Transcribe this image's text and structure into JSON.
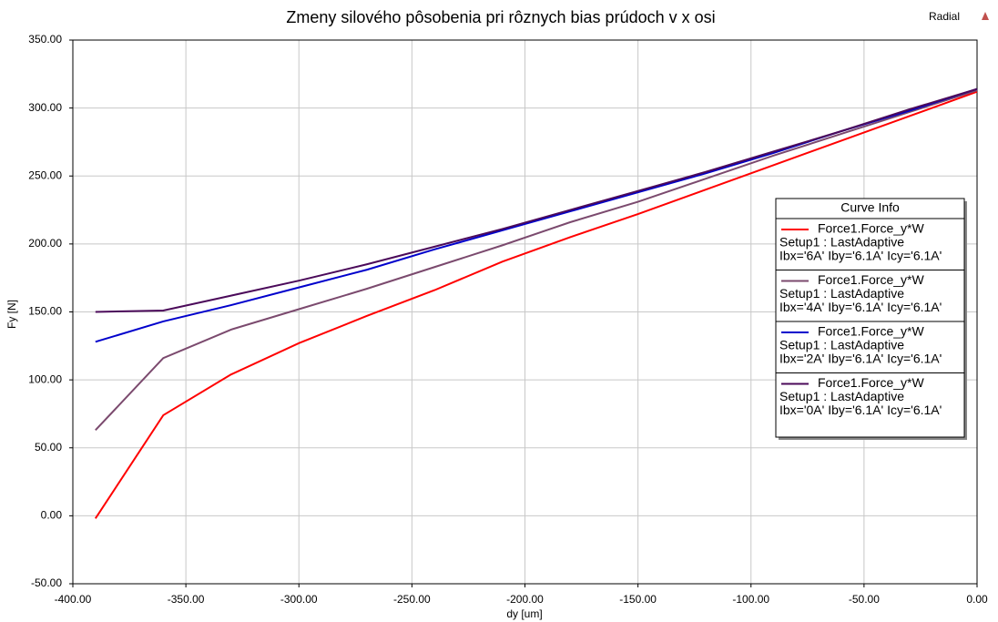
{
  "chart_data": {
    "type": "line",
    "title": "Zmeny silového pôsobenia pri rôznych bias prúdoch v x osi",
    "corner_label": "Radial",
    "x_label": "dy [um]",
    "y_label": "Fy [N]",
    "legend_title": "Curve Info",
    "legend_position": "right",
    "grid": true,
    "x": [
      -390,
      -360,
      -330,
      -300,
      -270,
      -240,
      -210,
      -180,
      -150,
      -120,
      -90,
      -60,
      -30,
      0
    ],
    "series": [
      {
        "name": "Force1.Force_y*W",
        "setup": "Setup1 : LastAdaptive",
        "params": "Ibx='6A' Iby='6.1A' Icy='6.1A'",
        "color": "#ff0000",
        "values": [
          -2,
          74,
          104,
          127,
          147,
          166,
          187,
          205,
          222,
          240,
          258,
          276,
          294,
          312
        ]
      },
      {
        "name": "Force1.Force_y*W",
        "setup": "Setup1 : LastAdaptive",
        "params": "Ibx='4A' Iby='6.1A' Icy='6.1A'",
        "color": "#7b4a6e",
        "values": [
          63,
          116,
          137,
          152,
          167,
          183,
          199,
          216,
          231,
          248,
          265,
          281,
          297,
          313
        ]
      },
      {
        "name": "Force1.Force_y*W",
        "setup": "Setup1 : LastAdaptive",
        "params": "Ibx='2A' Iby='6.1A' Icy='6.1A'",
        "color": "#0000cc",
        "values": [
          128,
          143,
          155,
          168,
          181,
          196,
          210,
          224,
          238,
          252,
          267,
          283,
          298,
          314
        ]
      },
      {
        "name": "Force1.Force_y*W",
        "setup": "Setup1 : LastAdaptive",
        "params": "Ibx='0A' Iby='6.1A' Icy='6.1A'",
        "color": "#4b0a5a",
        "values": [
          150,
          151,
          162,
          173,
          185,
          198,
          211,
          225,
          239,
          253,
          268,
          283,
          299,
          314
        ]
      }
    ],
    "xlim": [
      -400,
      0
    ],
    "xticks": [
      {
        "value": -400,
        "label": "-400.00"
      },
      {
        "value": -350,
        "label": "-350.00"
      },
      {
        "value": -300,
        "label": "-300.00"
      },
      {
        "value": -250,
        "label": "-250.00"
      },
      {
        "value": -200,
        "label": "-200.00"
      },
      {
        "value": -150,
        "label": "-150.00"
      },
      {
        "value": -100,
        "label": "-100.00"
      },
      {
        "value": -50,
        "label": "-50.00"
      },
      {
        "value": 0,
        "label": "0.00"
      }
    ],
    "ylim": [
      -50,
      350
    ],
    "yticks": [
      {
        "value": -50,
        "label": "-50.00"
      },
      {
        "value": 0,
        "label": "0.00"
      },
      {
        "value": 50,
        "label": "50.00"
      },
      {
        "value": 100,
        "label": "100.00"
      },
      {
        "value": 150,
        "label": "150.00"
      },
      {
        "value": 200,
        "label": "200.00"
      },
      {
        "value": 250,
        "label": "250.00"
      },
      {
        "value": 300,
        "label": "300.00"
      },
      {
        "value": 350,
        "label": "350.00"
      }
    ]
  }
}
